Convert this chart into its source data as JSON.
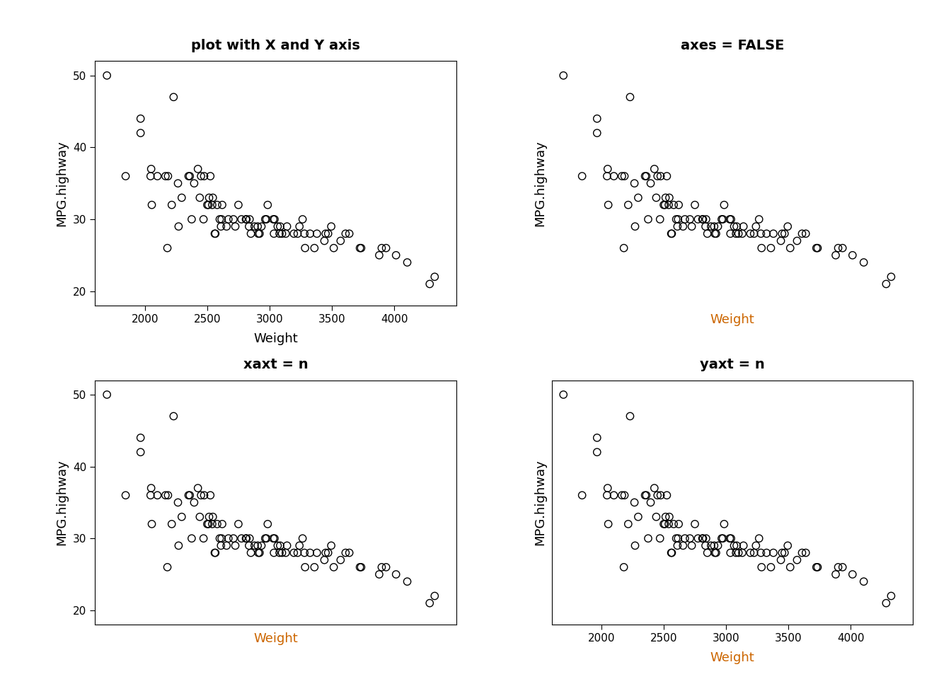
{
  "weight": [
    1695,
    1845,
    1965,
    1965,
    2045,
    2050,
    2055,
    2100,
    2165,
    2180,
    2185,
    2215,
    2230,
    2265,
    2270,
    2295,
    2350,
    2360,
    2375,
    2395,
    2425,
    2440,
    2450,
    2470,
    2475,
    2500,
    2510,
    2515,
    2525,
    2540,
    2545,
    2560,
    2565,
    2580,
    2600,
    2610,
    2615,
    2620,
    2655,
    2670,
    2710,
    2725,
    2750,
    2775,
    2810,
    2815,
    2835,
    2840,
    2850,
    2880,
    2905,
    2910,
    2920,
    2935,
    2965,
    2975,
    2985,
    3030,
    3035,
    3040,
    3065,
    3080,
    3085,
    3100,
    3130,
    3140,
    3195,
    3225,
    3240,
    3265,
    3280,
    3285,
    3325,
    3360,
    3380,
    3440,
    3450,
    3470,
    3495,
    3515,
    3570,
    3610,
    3640,
    3725,
    3735,
    3880,
    3900,
    3935,
    4015,
    4105,
    4285,
    4325
  ],
  "mpg_highway": [
    50,
    36,
    44,
    42,
    36,
    37,
    32,
    36,
    36,
    26,
    36,
    32,
    47,
    35,
    29,
    33,
    36,
    36,
    30,
    35,
    37,
    33,
    36,
    30,
    36,
    32,
    32,
    33,
    36,
    32,
    33,
    28,
    28,
    32,
    30,
    29,
    30,
    32,
    29,
    30,
    30,
    29,
    32,
    30,
    30,
    30,
    29,
    30,
    28,
    29,
    29,
    28,
    28,
    29,
    30,
    30,
    32,
    30,
    28,
    30,
    29,
    28,
    29,
    28,
    28,
    29,
    28,
    28,
    29,
    30,
    28,
    26,
    28,
    26,
    28,
    27,
    28,
    28,
    29,
    26,
    27,
    28,
    28,
    26,
    26,
    25,
    26,
    26,
    25,
    24,
    21,
    22
  ],
  "xlim": [
    1600,
    4500
  ],
  "ylim": [
    18,
    52
  ],
  "xticks": [
    2000,
    2500,
    3000,
    3500,
    4000
  ],
  "yticks": [
    20,
    30,
    40,
    50
  ],
  "xlabel": "Weight",
  "ylabel": "MPG.highway",
  "titles": [
    "plot with X and Y axis",
    "axes = FALSE",
    "xaxt = n",
    "yaxt = n"
  ],
  "show_xaxis": [
    true,
    false,
    false,
    true
  ],
  "show_yaxis": [
    true,
    false,
    true,
    false
  ],
  "show_box": [
    true,
    false,
    true,
    true
  ],
  "show_xticks_line": [
    true,
    false,
    false,
    true
  ],
  "show_yticks_line": [
    true,
    false,
    true,
    false
  ],
  "title_color": "#000000",
  "label_color_normal": "#000000",
  "label_color_orange": "#cc6600",
  "tick_color": "#000000",
  "background_color": "#ffffff",
  "marker_size": 55,
  "marker_linewidth": 1.0
}
